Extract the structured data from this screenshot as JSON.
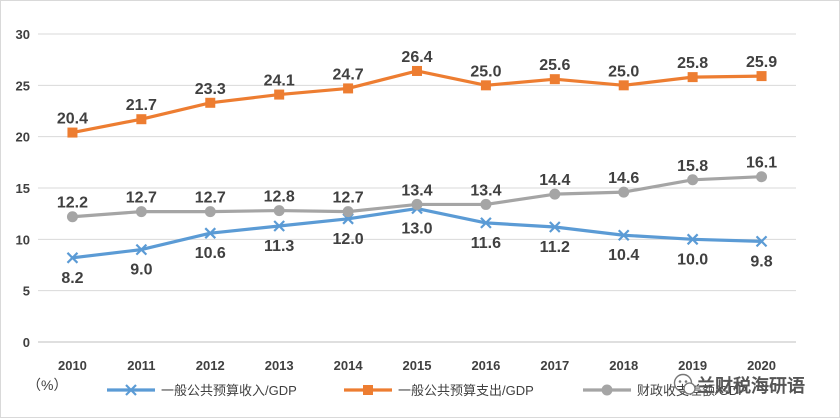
{
  "chart_data": {
    "type": "line",
    "title": "",
    "xlabel": "",
    "ylabel": "",
    "unit_label": "（%）",
    "x": [
      "2010",
      "2011",
      "2012",
      "2013",
      "2014",
      "2015",
      "2016",
      "2017",
      "2018",
      "2019",
      "2020"
    ],
    "yticks": [
      "0",
      "5",
      "10",
      "15",
      "20",
      "25",
      "30"
    ],
    "ylim": [
      0,
      30
    ],
    "grid": "horizontal",
    "legend": "bottom",
    "series": [
      {
        "name": "一般公共预算收入/GDP",
        "color": "#5b9bd5",
        "marker": "x",
        "label_position": "below",
        "values": [
          8.2,
          9.0,
          10.6,
          11.3,
          12.0,
          13.0,
          11.6,
          11.2,
          10.4,
          10.0,
          9.8
        ],
        "labels": [
          "8.2",
          "9.0",
          "10.6",
          "11.3",
          "12.0",
          "13.0",
          "11.6",
          "11.2",
          "10.4",
          "10.0",
          "9.8"
        ]
      },
      {
        "name": "一般公共预算支出/GDP",
        "color": "#ed7d31",
        "marker": "square",
        "label_position": "above",
        "values": [
          20.4,
          21.7,
          23.3,
          24.1,
          24.7,
          26.4,
          25.0,
          25.6,
          25.0,
          25.8,
          25.9
        ],
        "labels": [
          "20.4",
          "21.7",
          "23.3",
          "24.1",
          "24.7",
          "26.4",
          "25.0",
          "25.6",
          "25.0",
          "25.8",
          "25.9"
        ]
      },
      {
        "name": "财政收支差额/GDP",
        "color": "#a5a5a5",
        "marker": "circle",
        "label_position": "above",
        "values": [
          12.2,
          12.7,
          12.7,
          12.8,
          12.7,
          13.4,
          13.4,
          14.4,
          14.6,
          15.8,
          16.1
        ],
        "labels": [
          "12.2",
          "12.7",
          "12.7",
          "12.8",
          "12.7",
          "13.4",
          "13.4",
          "14.4",
          "14.6",
          "15.8",
          "16.1"
        ]
      }
    ]
  },
  "watermark": {
    "text": "兰财税海研语",
    "icon": "wechat-icon"
  }
}
